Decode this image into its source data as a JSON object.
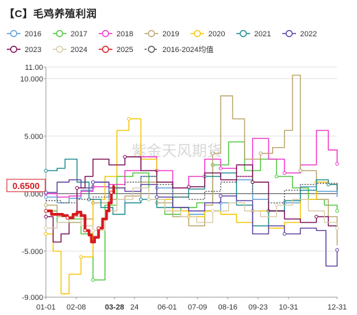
{
  "title": "【C】毛鸡养殖利润",
  "watermark": "紫金天风期货",
  "current_value_label": "0.6500",
  "highlight_date_label": "03-28",
  "chart_data": {
    "type": "line",
    "ylim": [
      -9,
      11
    ],
    "yticks": [
      11,
      10,
      5,
      0,
      -5,
      -9
    ],
    "ytick_labels": [
      "11.00",
      "10.000",
      "5.000",
      "0.000",
      "-5.000",
      "-9.000"
    ],
    "xticks": [
      "01-01",
      "02-08",
      "03-28",
      "24",
      "06-01",
      "07-09",
      "08-16",
      "09-23",
      "10-31",
      "12-31"
    ],
    "xtick_days": [
      1,
      39,
      87,
      112,
      153,
      191,
      229,
      267,
      305,
      366
    ],
    "legend_position": "top",
    "series": [
      {
        "name": "2016",
        "color": "#5b9bd5",
        "dashed": false,
        "points": [
          [
            1,
            -0.3
          ],
          [
            15,
            -0.8
          ],
          [
            30,
            -0.4
          ],
          [
            45,
            0.3
          ],
          [
            60,
            1.0
          ],
          [
            80,
            -0.5
          ],
          [
            100,
            -0.8
          ],
          [
            120,
            1.5
          ],
          [
            140,
            0.5
          ],
          [
            160,
            -1.2
          ],
          [
            180,
            -1.8
          ],
          [
            200,
            -1.5
          ],
          [
            220,
            -0.8
          ],
          [
            240,
            1.2
          ],
          [
            260,
            -0.5
          ],
          [
            280,
            -1.5
          ],
          [
            300,
            -0.8
          ],
          [
            320,
            0.6
          ],
          [
            340,
            0.2
          ],
          [
            366,
            -0.3
          ]
        ]
      },
      {
        "name": "2017",
        "color": "#4cc63c",
        "dashed": false,
        "points": [
          [
            1,
            -1.5
          ],
          [
            15,
            -2.5
          ],
          [
            30,
            -2.2
          ],
          [
            45,
            -3.5
          ],
          [
            60,
            -7.5
          ],
          [
            75,
            -1.0
          ],
          [
            90,
            1.5
          ],
          [
            110,
            1.8
          ],
          [
            130,
            -0.5
          ],
          [
            150,
            -1.8
          ],
          [
            170,
            -1.2
          ],
          [
            190,
            -0.8
          ],
          [
            210,
            2.5
          ],
          [
            230,
            4.5
          ],
          [
            250,
            2.0
          ],
          [
            270,
            3.0
          ],
          [
            290,
            1.5
          ],
          [
            310,
            0.5
          ],
          [
            330,
            -0.5
          ],
          [
            350,
            -1.0
          ],
          [
            366,
            -1.5
          ]
        ]
      },
      {
        "name": "2018",
        "color": "#f032c8",
        "dashed": false,
        "points": [
          [
            1,
            0.0
          ],
          [
            15,
            -0.3
          ],
          [
            30,
            -0.2
          ],
          [
            45,
            0.2
          ],
          [
            60,
            0.6
          ],
          [
            80,
            0.8
          ],
          [
            100,
            2.0
          ],
          [
            120,
            3.2
          ],
          [
            140,
            2.0
          ],
          [
            160,
            0.5
          ],
          [
            180,
            1.5
          ],
          [
            200,
            3.0
          ],
          [
            220,
            2.2
          ],
          [
            240,
            1.5
          ],
          [
            260,
            4.8
          ],
          [
            280,
            3.0
          ],
          [
            300,
            1.8
          ],
          [
            320,
            2.5
          ],
          [
            340,
            5.5
          ],
          [
            355,
            3.8
          ],
          [
            366,
            2.6
          ]
        ]
      },
      {
        "name": "2019",
        "color": "#b8a46a",
        "dashed": false,
        "points": [
          [
            1,
            -1.0
          ],
          [
            15,
            -2.0
          ],
          [
            30,
            -2.5
          ],
          [
            45,
            -2.2
          ],
          [
            60,
            -0.8
          ],
          [
            80,
            -0.5
          ],
          [
            100,
            -0.2
          ],
          [
            120,
            1.0
          ],
          [
            140,
            -0.8
          ],
          [
            160,
            -2.0
          ],
          [
            180,
            -2.8
          ],
          [
            200,
            -1.0
          ],
          [
            210,
            3.5
          ],
          [
            220,
            8.5
          ],
          [
            235,
            6.5
          ],
          [
            250,
            3.0
          ],
          [
            270,
            3.5
          ],
          [
            285,
            4.0
          ],
          [
            300,
            5.5
          ],
          [
            310,
            10.3
          ],
          [
            320,
            2.0
          ],
          [
            340,
            -0.5
          ],
          [
            355,
            -2.0
          ],
          [
            366,
            -4.5
          ]
        ]
      },
      {
        "name": "2020",
        "color": "#f5c400",
        "dashed": false,
        "points": [
          [
            1,
            -3.5
          ],
          [
            10,
            -5.0
          ],
          [
            20,
            -8.7
          ],
          [
            30,
            -7.0
          ],
          [
            45,
            -5.5
          ],
          [
            60,
            -0.5
          ],
          [
            75,
            1.5
          ],
          [
            90,
            5.5
          ],
          [
            105,
            6.5
          ],
          [
            120,
            3.0
          ],
          [
            140,
            -0.5
          ],
          [
            160,
            -1.5
          ],
          [
            180,
            -2.0
          ],
          [
            200,
            -1.5
          ],
          [
            220,
            -1.8
          ],
          [
            240,
            -2.5
          ],
          [
            260,
            -1.5
          ],
          [
            280,
            -3.0
          ],
          [
            300,
            -2.5
          ],
          [
            320,
            -0.5
          ],
          [
            340,
            1.0
          ],
          [
            355,
            0.8
          ],
          [
            366,
            0.4
          ]
        ]
      },
      {
        "name": "2021",
        "color": "#1b8a8f",
        "dashed": false,
        "points": [
          [
            1,
            2.0
          ],
          [
            15,
            2.2
          ],
          [
            25,
            3.0
          ],
          [
            40,
            1.0
          ],
          [
            55,
            -0.5
          ],
          [
            70,
            -1.2
          ],
          [
            85,
            -1.8
          ],
          [
            100,
            -0.8
          ],
          [
            120,
            -0.5
          ],
          [
            140,
            -1.2
          ],
          [
            160,
            -0.3
          ],
          [
            180,
            0.4
          ],
          [
            200,
            1.5
          ],
          [
            220,
            1.8
          ],
          [
            240,
            -1.0
          ],
          [
            260,
            -2.8
          ],
          [
            280,
            -1.5
          ],
          [
            300,
            -0.6
          ],
          [
            320,
            0.3
          ],
          [
            340,
            1.2
          ],
          [
            355,
            0.8
          ],
          [
            366,
            0.2
          ]
        ]
      },
      {
        "name": "2022",
        "color": "#5b3fa0",
        "dashed": false,
        "points": [
          [
            1,
            0.1
          ],
          [
            15,
            1.0
          ],
          [
            30,
            1.2
          ],
          [
            45,
            0.5
          ],
          [
            60,
            1.0
          ],
          [
            80,
            0.5
          ],
          [
            100,
            0.2
          ],
          [
            120,
            0.8
          ],
          [
            140,
            -0.3
          ],
          [
            160,
            -1.2
          ],
          [
            180,
            -1.5
          ],
          [
            200,
            -0.8
          ],
          [
            220,
            -0.2
          ],
          [
            240,
            -0.6
          ],
          [
            260,
            -3.5
          ],
          [
            280,
            -2.8
          ],
          [
            300,
            -3.5
          ],
          [
            320,
            -3.0
          ],
          [
            340,
            -3.2
          ],
          [
            352,
            -6.3
          ],
          [
            366,
            -4.9
          ]
        ]
      },
      {
        "name": "2023",
        "color": "#7a0a54",
        "dashed": false,
        "points": [
          [
            1,
            -2.0
          ],
          [
            10,
            -4.2
          ],
          [
            20,
            -3.5
          ],
          [
            30,
            -2.0
          ],
          [
            40,
            0.5
          ],
          [
            50,
            1.5
          ],
          [
            60,
            3.0
          ],
          [
            80,
            2.5
          ],
          [
            100,
            3.2
          ],
          [
            120,
            2.0
          ],
          [
            140,
            1.0
          ],
          [
            160,
            0.5
          ],
          [
            180,
            0.6
          ],
          [
            200,
            1.8
          ],
          [
            220,
            1.2
          ],
          [
            240,
            2.5
          ],
          [
            260,
            1.0
          ],
          [
            280,
            -1.5
          ],
          [
            300,
            -2.2
          ],
          [
            320,
            -2.5
          ],
          [
            340,
            -2.0
          ],
          [
            355,
            -2.8
          ],
          [
            366,
            -2.9
          ]
        ]
      },
      {
        "name": "2024",
        "color": "#d8ccaa",
        "dashed": false,
        "points": [
          [
            1,
            -3.0
          ],
          [
            15,
            -2.5
          ],
          [
            30,
            -2.0
          ],
          [
            45,
            -2.8
          ],
          [
            60,
            -3.2
          ],
          [
            75,
            -1.5
          ],
          [
            90,
            -0.5
          ],
          [
            110,
            0.5
          ],
          [
            130,
            -0.5
          ],
          [
            150,
            -1.5
          ],
          [
            170,
            -2.0
          ],
          [
            190,
            -2.5
          ],
          [
            210,
            -1.5
          ],
          [
            230,
            -0.8
          ],
          [
            250,
            -1.5
          ],
          [
            270,
            -2.0
          ],
          [
            290,
            -1.0
          ],
          [
            310,
            -0.5
          ],
          [
            330,
            -1.5
          ],
          [
            350,
            -2.5
          ],
          [
            366,
            -3.0
          ]
        ]
      },
      {
        "name": "2025",
        "color": "#d71920",
        "dashed": false,
        "bold": true,
        "points": [
          [
            1,
            -1.5
          ],
          [
            8,
            -1.8
          ],
          [
            15,
            -1.8
          ],
          [
            22,
            -1.9
          ],
          [
            28,
            -2.1
          ],
          [
            35,
            -1.8
          ],
          [
            40,
            -1.6
          ],
          [
            45,
            -1.9
          ],
          [
            50,
            -3.2
          ],
          [
            55,
            -3.6
          ],
          [
            58,
            -4.2
          ],
          [
            62,
            -3.8
          ],
          [
            67,
            -3.0
          ],
          [
            72,
            -2.2
          ],
          [
            77,
            -1.5
          ],
          [
            80,
            -0.8
          ],
          [
            83,
            0.1
          ],
          [
            86,
            0.65
          ],
          [
            87,
            0.65
          ]
        ]
      },
      {
        "name": "2016-2024均值",
        "color": "#555555",
        "dashed": true,
        "points": [
          [
            1,
            -0.6
          ],
          [
            20,
            -0.8
          ],
          [
            40,
            -0.5
          ],
          [
            60,
            -0.3
          ],
          [
            80,
            0.5
          ],
          [
            100,
            1.0
          ],
          [
            120,
            1.5
          ],
          [
            140,
            0.8
          ],
          [
            160,
            -0.3
          ],
          [
            180,
            -0.5
          ],
          [
            200,
            0.2
          ],
          [
            220,
            1.0
          ],
          [
            240,
            1.5
          ],
          [
            260,
            0.0
          ],
          [
            280,
            -0.8
          ],
          [
            300,
            0.3
          ],
          [
            320,
            0.8
          ],
          [
            340,
            0.9
          ],
          [
            366,
            0.3
          ]
        ]
      }
    ]
  }
}
